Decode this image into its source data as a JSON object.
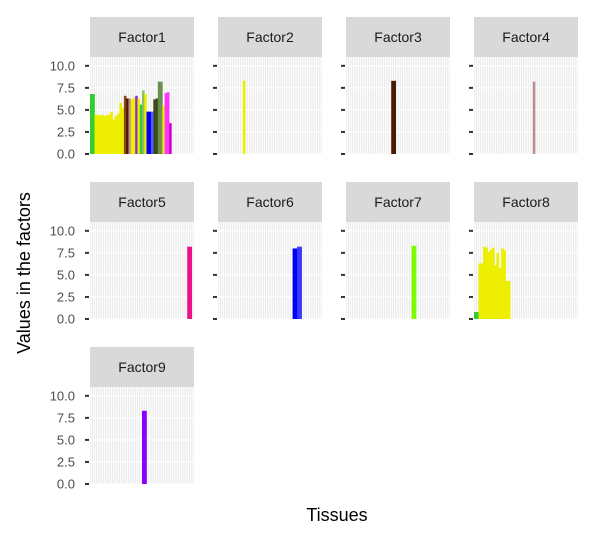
{
  "chart_data": {
    "type": "bar",
    "facet_layout": "4 columns x 3 rows",
    "xlabel": "Tissues",
    "ylabel": "Values in the factors",
    "ylim": [
      0,
      11
    ],
    "y_ticks": [
      "0.0",
      "2.5",
      "5.0",
      "7.5",
      "10.0"
    ],
    "y_tick_values": [
      0,
      2.5,
      5,
      7.5,
      10
    ],
    "n_tissues": 46,
    "grid": true,
    "panel_background": "#ebebeb",
    "strip_background": "#d9d9d9",
    "panels": [
      {
        "title": "Factor1",
        "bars": [
          {
            "tissue": 1,
            "value": 6.8,
            "color": "#32cd32"
          },
          {
            "tissue": 2,
            "value": 6.8,
            "color": "#32cd32"
          },
          {
            "tissue": 3,
            "value": 4.5,
            "color": "#eeee00"
          },
          {
            "tissue": 4,
            "value": 4.4,
            "color": "#eeee00"
          },
          {
            "tissue": 5,
            "value": 4.4,
            "color": "#eeee00"
          },
          {
            "tissue": 6,
            "value": 4.4,
            "color": "#eeee00"
          },
          {
            "tissue": 7,
            "value": 4.3,
            "color": "#eeee00"
          },
          {
            "tissue": 8,
            "value": 4.4,
            "color": "#eeee00"
          },
          {
            "tissue": 9,
            "value": 4.5,
            "color": "#eeee00"
          },
          {
            "tissue": 10,
            "value": 4.8,
            "color": "#eeee00"
          },
          {
            "tissue": 11,
            "value": 3.9,
            "color": "#eeee00"
          },
          {
            "tissue": 12,
            "value": 4.3,
            "color": "#eeee00"
          },
          {
            "tissue": 13,
            "value": 4.6,
            "color": "#eeee00"
          },
          {
            "tissue": 14,
            "value": 5.8,
            "color": "#eeee00"
          },
          {
            "tissue": 15,
            "value": 5.2,
            "color": "#eeee00"
          },
          {
            "tissue": 16,
            "value": 6.6,
            "color": "#8b4513"
          },
          {
            "tissue": 17,
            "value": 6.3,
            "color": "#4a1a08"
          },
          {
            "tissue": 18,
            "value": 6.3,
            "color": "#bc8f8f"
          },
          {
            "tissue": 19,
            "value": 6.2,
            "color": "#eeee00"
          },
          {
            "tissue": 20,
            "value": 6.4,
            "color": "#eeee00"
          },
          {
            "tissue": 21,
            "value": 6.6,
            "color": "#8a2be2"
          },
          {
            "tissue": 22,
            "value": 6.3,
            "color": "#eeee00"
          },
          {
            "tissue": 23,
            "value": 5.6,
            "color": "#32cd32"
          },
          {
            "tissue": 24,
            "value": 7.2,
            "color": "#8fbc5f"
          },
          {
            "tissue": 25,
            "value": 6.8,
            "color": "#eeee00"
          },
          {
            "tissue": 26,
            "value": 4.8,
            "color": "#0000ff"
          },
          {
            "tissue": 27,
            "value": 4.8,
            "color": "#0000ff"
          },
          {
            "tissue": 28,
            "value": 4.8,
            "color": "#5b5bff"
          },
          {
            "tissue": 29,
            "value": 6.2,
            "color": "#3d4a1c"
          },
          {
            "tissue": 30,
            "value": 6.3,
            "color": "#3d4a1c"
          },
          {
            "tissue": 31,
            "value": 8.2,
            "color": "#6b8e4e"
          },
          {
            "tissue": 32,
            "value": 8.2,
            "color": "#6b8e4e"
          },
          {
            "tissue": 33,
            "value": 5.5,
            "color": "#eeee00"
          },
          {
            "tissue": 34,
            "value": 6.9,
            "color": "#ff33ff"
          },
          {
            "tissue": 35,
            "value": 7.0,
            "color": "#ff33ff"
          },
          {
            "tissue": 36,
            "value": 3.5,
            "color": "#cc00cc"
          }
        ]
      },
      {
        "title": "Factor2",
        "bars": [
          {
            "tissue": 12,
            "value": 8.3,
            "color": "#eeee00"
          }
        ]
      },
      {
        "title": "Factor3",
        "bars": [
          {
            "tissue": 21,
            "value": 8.3,
            "color": "#4a1a08"
          },
          {
            "tissue": 22,
            "value": 8.3,
            "color": "#4a1a08"
          }
        ]
      },
      {
        "title": "Factor4",
        "bars": [
          {
            "tissue": 27,
            "value": 8.2,
            "color": "#bc8f8f"
          }
        ]
      },
      {
        "title": "Factor5",
        "bars": [
          {
            "tissue": 44,
            "value": 8.2,
            "color": "#ee1289"
          },
          {
            "tissue": 45,
            "value": 8.2,
            "color": "#ee1289"
          }
        ]
      },
      {
        "title": "Factor6",
        "bars": [
          {
            "tissue": 34,
            "value": 8.0,
            "color": "#0000ff"
          },
          {
            "tissue": 35,
            "value": 8.0,
            "color": "#0000ff"
          },
          {
            "tissue": 36,
            "value": 8.2,
            "color": "#3a3aff"
          },
          {
            "tissue": 37,
            "value": 8.2,
            "color": "#3a3aff"
          }
        ]
      },
      {
        "title": "Factor7",
        "bars": [
          {
            "tissue": 30,
            "value": 8.3,
            "color": "#7cfc00"
          },
          {
            "tissue": 31,
            "value": 8.3,
            "color": "#7cfc00"
          }
        ]
      },
      {
        "title": "Factor8",
        "bars": [
          {
            "tissue": 1,
            "value": 0.8,
            "color": "#32cd32"
          },
          {
            "tissue": 2,
            "value": 0.8,
            "color": "#32cd32"
          },
          {
            "tissue": 3,
            "value": 6.3,
            "color": "#eeee00"
          },
          {
            "tissue": 4,
            "value": 6.3,
            "color": "#eeee00"
          },
          {
            "tissue": 5,
            "value": 8.2,
            "color": "#eeee00"
          },
          {
            "tissue": 6,
            "value": 8.1,
            "color": "#eeee00"
          },
          {
            "tissue": 7,
            "value": 7.6,
            "color": "#eeee00"
          },
          {
            "tissue": 8,
            "value": 7.9,
            "color": "#eeee00"
          },
          {
            "tissue": 9,
            "value": 8.1,
            "color": "#eeee00"
          },
          {
            "tissue": 10,
            "value": 6.1,
            "color": "#eeee00"
          },
          {
            "tissue": 11,
            "value": 7.5,
            "color": "#eeee00"
          },
          {
            "tissue": 12,
            "value": 5.8,
            "color": "#eeee00"
          },
          {
            "tissue": 13,
            "value": 8.0,
            "color": "#eeee00"
          },
          {
            "tissue": 14,
            "value": 7.8,
            "color": "#eeee00"
          },
          {
            "tissue": 15,
            "value": 4.3,
            "color": "#eeee00"
          },
          {
            "tissue": 16,
            "value": 4.3,
            "color": "#eeee00"
          }
        ]
      },
      {
        "title": "Factor9",
        "bars": [
          {
            "tissue": 24,
            "value": 8.3,
            "color": "#8b00ff"
          },
          {
            "tissue": 25,
            "value": 8.3,
            "color": "#8b00ff"
          }
        ]
      }
    ]
  }
}
